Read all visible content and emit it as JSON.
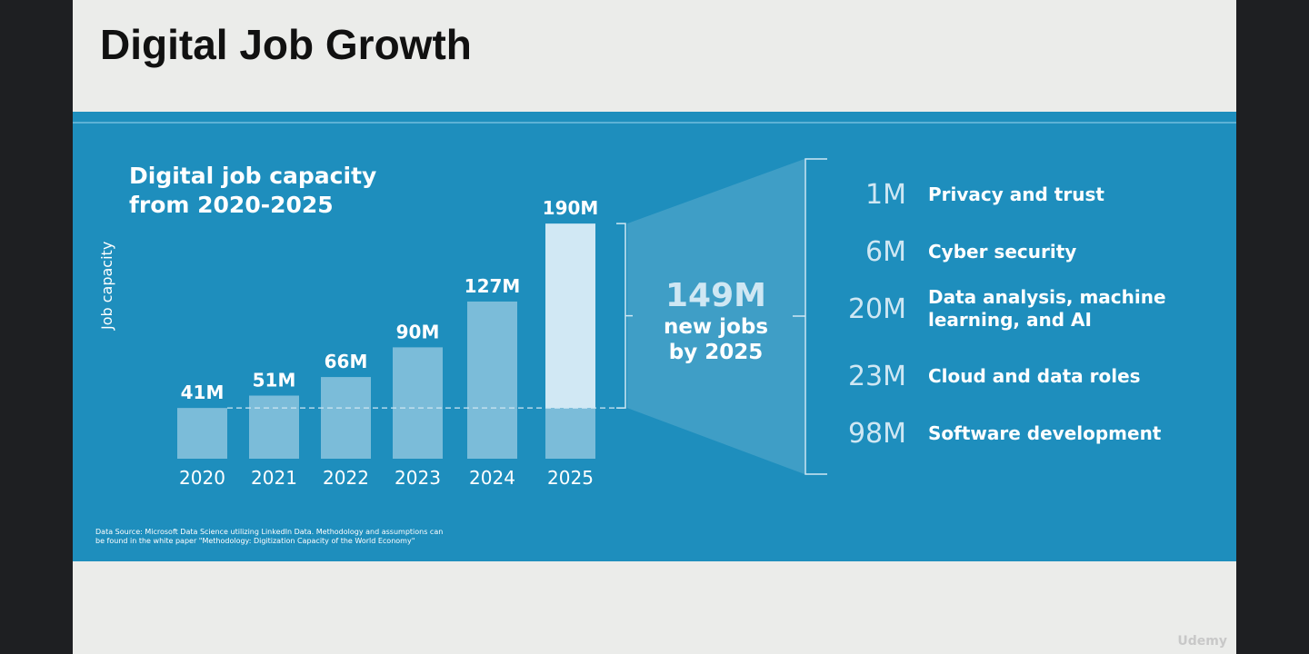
{
  "slide_title": "Digital Job Growth",
  "watermark": "Udemy",
  "chart_data": {
    "type": "bar",
    "title": "Digital job capacity from 2020-2025",
    "title_lines": [
      "Digital job capacity",
      "from 2020-2025"
    ],
    "ylabel": "Job capacity",
    "categories": [
      "2020",
      "2021",
      "2022",
      "2023",
      "2024",
      "2025"
    ],
    "values": [
      41,
      51,
      66,
      90,
      127,
      190
    ],
    "value_labels": [
      "41M",
      "51M",
      "66M",
      "90M",
      "127M",
      "190M"
    ],
    "unit": "M",
    "ylim": [
      0,
      190
    ],
    "highlight": {
      "value": "149M",
      "lines": [
        "new jobs",
        "by 2025"
      ]
    },
    "breakdown": [
      {
        "value": "1M",
        "label": "Privacy and trust"
      },
      {
        "value": "6M",
        "label": "Cyber security"
      },
      {
        "value": "20M",
        "label": "Data analysis, machine learning, and AI"
      },
      {
        "value": "23M",
        "label": "Cloud and data roles"
      },
      {
        "value": "98M",
        "label": "Software development"
      }
    ],
    "source_lines": [
      "Data Source: Microsoft Data Science utilizing LinkedIn Data. Methodology and assumptions can",
      "be found in the white paper \"Methodology: Digitization Capacity of the World Economy\""
    ]
  }
}
